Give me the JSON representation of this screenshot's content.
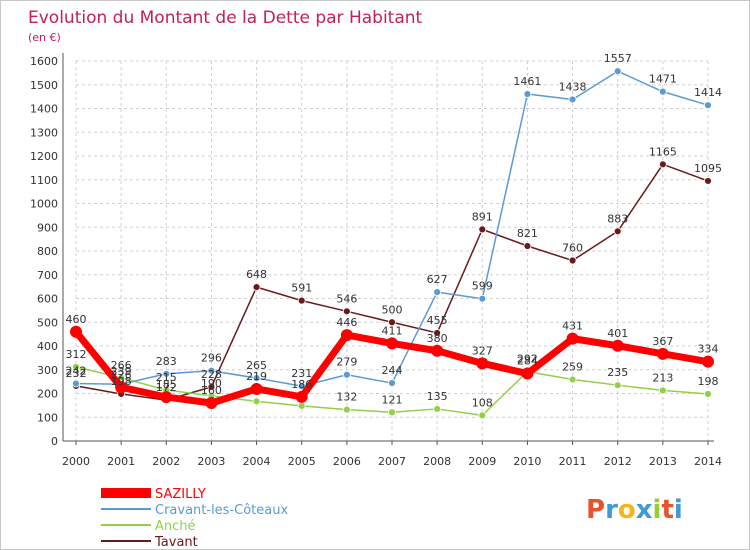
{
  "chart_data": {
    "type": "line",
    "title": "Evolution du Montant de la Dette par Habitant",
    "subtitle": "(en €)",
    "x": [
      "2000",
      "2001",
      "2002",
      "2003",
      "2004",
      "2005",
      "2006",
      "2007",
      "2008",
      "2009",
      "2010",
      "2011",
      "2012",
      "2013",
      "2014"
    ],
    "ylim": [
      0,
      1600
    ],
    "yticks": [
      0,
      100,
      200,
      300,
      400,
      500,
      600,
      700,
      800,
      900,
      1000,
      1100,
      1200,
      1300,
      1400,
      1500,
      1600
    ],
    "grid": true,
    "legend_position": "bottom-left",
    "series": [
      {
        "name": "SAZILLY",
        "color": "#ff0000",
        "values": [
          460,
          226,
          185,
          160,
          219,
          186,
          446,
          411,
          380,
          327,
          284,
          431,
          401,
          367,
          334
        ],
        "labels": [
          "460",
          "226",
          "185",
          "160",
          "219",
          "186",
          "446",
          "411",
          "380",
          "327",
          "284",
          "431",
          "401",
          "367",
          "334"
        ]
      },
      {
        "name": "Cravant-les-Côteaux",
        "color": "#5b9bd5",
        "values": [
          242,
          239,
          283,
          296,
          265,
          231,
          279,
          244,
          627,
          599,
          1461,
          1438,
          1557,
          1471,
          1414
        ],
        "labels": [
          "242",
          "239",
          "283",
          "296",
          "265",
          "231",
          "279",
          "244",
          "627",
          "599",
          "1461",
          "1438",
          "1557",
          "1471",
          "1414"
        ]
      },
      {
        "name": "Anché",
        "color": "#90d04a",
        "values": [
          312,
          266,
          215,
          190,
          167,
          148,
          132,
          121,
          135,
          108,
          292,
          259,
          235,
          213,
          198
        ],
        "labels": [
          "312",
          "266",
          "215",
          "190",
          "",
          "",
          "132",
          "121",
          "135",
          "108",
          "292",
          "259",
          "235",
          "213",
          "198"
        ]
      },
      {
        "name": "Tavant",
        "color": "#6b1a1a",
        "values": [
          232,
          198,
          172,
          228,
          648,
          591,
          546,
          500,
          455,
          891,
          821,
          760,
          883,
          1165,
          1095
        ],
        "labels": [
          "232",
          "198",
          "172",
          "228",
          "648",
          "591",
          "546",
          "500",
          "455",
          "891",
          "821",
          "760",
          "883",
          "1165",
          "1095"
        ]
      }
    ]
  },
  "branding": {
    "logo_text": "Proxiti",
    "logo_colors": [
      "#e8532b",
      "#3f9ad8",
      "#f2b61b",
      "#3f9ad8",
      "#9acd32",
      "#e8532b",
      "#3f9ad8"
    ]
  }
}
